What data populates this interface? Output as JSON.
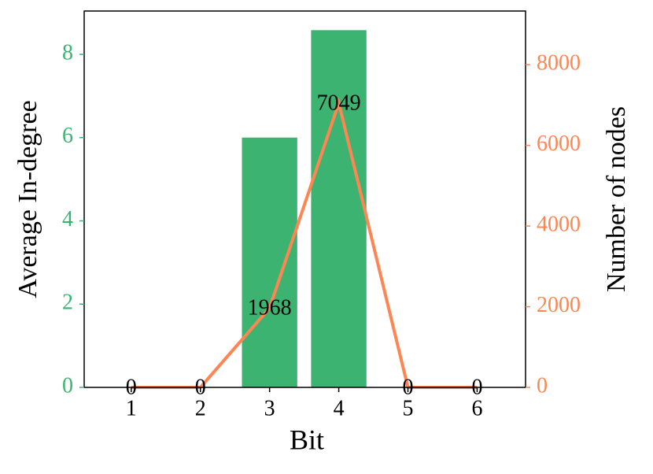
{
  "chart_data": {
    "type": "bar",
    "xlabel": "Bit",
    "ylabel": "Average In-degree",
    "y2label": "Number of nodes",
    "x": [
      1,
      2,
      3,
      4,
      5,
      6
    ],
    "xlim": [
      0.32,
      6.7
    ],
    "xticks": [
      1,
      2,
      3,
      4,
      5,
      6
    ],
    "ylim": [
      0,
      9.04
    ],
    "yticks": [
      0,
      2,
      4,
      6,
      8
    ],
    "y2lim": [
      0,
      9330
    ],
    "y2ticks": [
      0,
      2000,
      4000,
      6000,
      8000
    ],
    "bar_width": 0.8,
    "series": [
      {
        "type": "bar",
        "color": "#3cb371",
        "values": [
          0,
          0,
          6.0,
          8.58,
          0,
          0
        ]
      },
      {
        "type": "line",
        "axis": "y2",
        "color": "#ff8552",
        "values": [
          0,
          0,
          1968,
          7049,
          0,
          0
        ]
      }
    ]
  }
}
